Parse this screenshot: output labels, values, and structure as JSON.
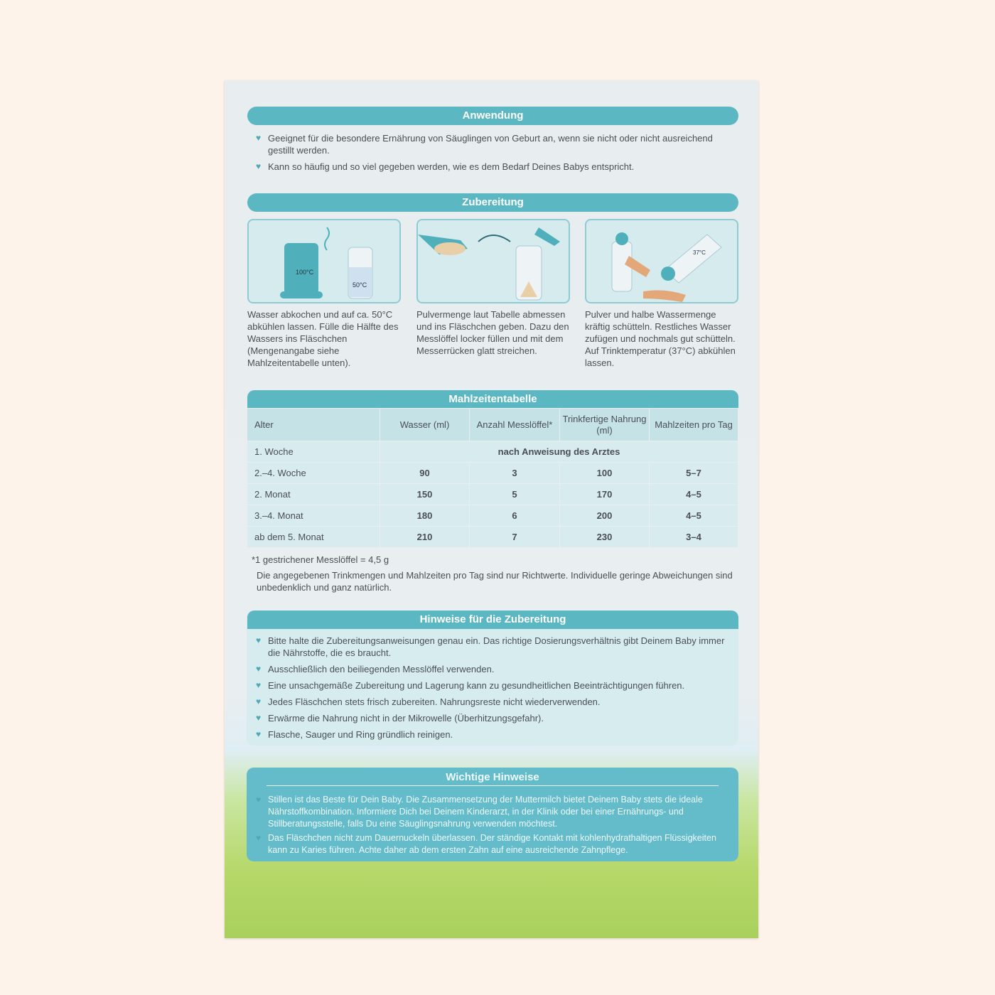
{
  "sections": {
    "anwendung": {
      "title": "Anwendung",
      "bullets": [
        "Geeignet für die besondere Ernährung von Säuglingen von Geburt an, wenn sie nicht oder nicht ausreichend gestillt werden.",
        "Kann so häufig und so viel gegeben werden, wie es dem Bedarf Deines Babys entspricht."
      ]
    },
    "zubereitung": {
      "title": "Zubereitung",
      "steps": [
        {
          "labels": [
            "100°C",
            "50°C"
          ],
          "text": "Wasser abkochen und auf ca. 50°C abkühlen lassen. Fülle die Hälfte des Wassers ins Fläschchen (Mengenangabe siehe Mahlzeitentabelle unten)."
        },
        {
          "labels": [],
          "text": "Pulvermenge laut Tabelle abmessen und ins Fläschchen geben. Dazu den Messlöffel locker füllen und mit dem Messerrücken glatt streichen."
        },
        {
          "labels": [
            "37°C"
          ],
          "text": "Pulver und halbe Wassermenge kräftig schütteln. Restliches Wasser zufügen und nochmals gut schütteln. Auf Trinktemperatur (37°C) abkühlen lassen."
        }
      ]
    },
    "table": {
      "title": "Mahlzeitentabelle",
      "headers": [
        "Alter",
        "Wasser (ml)",
        "Anzahl Messlöffel*",
        "Trinkfertige Nahrung (ml)",
        "Mahlzeiten pro Tag"
      ],
      "first_row": {
        "age": "1. Woche",
        "note": "nach Anweisung des Arztes"
      },
      "rows": [
        [
          "2.–4. Woche",
          "90",
          "3",
          "100",
          "5–7"
        ],
        [
          "2. Monat",
          "150",
          "5",
          "170",
          "4–5"
        ],
        [
          "3.–4. Monat",
          "180",
          "6",
          "200",
          "4–5"
        ],
        [
          "ab dem 5. Monat",
          "210",
          "7",
          "230",
          "3–4"
        ]
      ],
      "footnote": "*1 gestrichener Messlöffel = 4,5 g",
      "note": "Die angegebenen Trinkmengen und Mahlzeiten pro Tag sind nur Richtwerte. Individuelle geringe Abweichungen sind unbedenklich und ganz natürlich."
    },
    "hinweise": {
      "title": "Hinweise für die Zubereitung",
      "bullets": [
        "Bitte halte die Zubereitungsanweisungen genau ein. Das richtige Dosierungsverhältnis gibt Deinem Baby immer die Nährstoffe, die es braucht.",
        "Ausschließlich den beiliegenden Messlöffel verwenden.",
        "Eine unsachgemäße Zubereitung und Lagerung kann zu gesundheitlichen Beeinträchtigungen führen.",
        "Jedes Fläschchen stets frisch zubereiten. Nahrungsreste nicht wiederverwenden.",
        "Erwärme die Nahrung nicht in der Mikrowelle (Überhitzungsgefahr).",
        "Flasche, Sauger und Ring gründlich reinigen."
      ]
    },
    "wichtig": {
      "title": "Wichtige Hinweise",
      "bullets": [
        "Stillen ist das Beste für Dein Baby. Die Zusammensetzung der Muttermilch bietet Deinem Baby stets die ideale Nährstoffkombination. Informiere Dich bei Deinem Kinderarzt, in der Klinik oder bei einer Ernährungs- und Stillberatungsstelle, falls Du eine Säuglingsnahrung verwenden möchtest.",
        "Das Fläschchen nicht zum Dauernuckeln überlassen. Der ständige Kontakt mit kohlenhydrathaltigen Flüssigkeiten kann zu Karies führen. Achte daher ab dem ersten Zahn auf eine ausreichende Zahnpflege."
      ]
    }
  },
  "colors": {
    "accent": "#5bb8c3",
    "background": "#fdf3ea",
    "grass": "#a9d05c"
  }
}
